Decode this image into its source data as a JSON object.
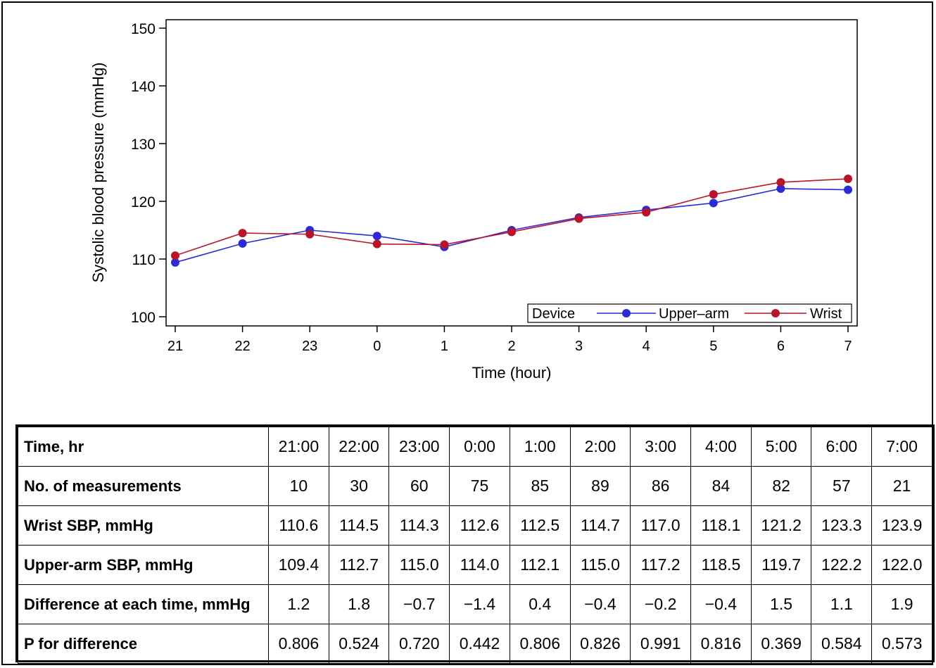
{
  "chart_data": {
    "type": "line",
    "xlabel": "Time (hour)",
    "ylabel": "Systolic blood pressure (mmHg)",
    "categories": [
      "21",
      "22",
      "23",
      "0",
      "1",
      "2",
      "3",
      "4",
      "5",
      "6",
      "7"
    ],
    "ylim": [
      100,
      150
    ],
    "yticks": [
      100,
      110,
      120,
      130,
      140,
      150
    ],
    "grid": false,
    "legend": {
      "title": "Device",
      "position": "bottom-right"
    },
    "series": [
      {
        "name": "Upper–arm",
        "color": "#2b2bd6",
        "values": [
          109.4,
          112.7,
          115.0,
          114.0,
          112.1,
          115.0,
          117.2,
          118.5,
          119.7,
          122.2,
          122.0
        ]
      },
      {
        "name": "Wrist",
        "color": "#b8142a",
        "values": [
          110.6,
          114.5,
          114.3,
          112.6,
          112.5,
          114.7,
          117.0,
          118.1,
          121.2,
          123.3,
          123.9
        ]
      }
    ]
  },
  "table": {
    "rows": [
      {
        "label": "Time, hr",
        "cells": [
          "21:00",
          "22:00",
          "23:00",
          "0:00",
          "1:00",
          "2:00",
          "3:00",
          "4:00",
          "5:00",
          "6:00",
          "7:00"
        ]
      },
      {
        "label": "No. of measurements",
        "cells": [
          "10",
          "30",
          "60",
          "75",
          "85",
          "89",
          "86",
          "84",
          "82",
          "57",
          "21"
        ]
      },
      {
        "label": "Wrist SBP, mmHg",
        "cells": [
          "110.6",
          "114.5",
          "114.3",
          "112.6",
          "112.5",
          "114.7",
          "117.0",
          "118.1",
          "121.2",
          "123.3",
          "123.9"
        ]
      },
      {
        "label": "Upper-arm SBP, mmHg",
        "cells": [
          "109.4",
          "112.7",
          "115.0",
          "114.0",
          "112.1",
          "115.0",
          "117.2",
          "118.5",
          "119.7",
          "122.2",
          "122.0"
        ]
      },
      {
        "label": "Difference at each time, mmHg",
        "cells": [
          "1.2",
          "1.8",
          "−0.7",
          "−1.4",
          "0.4",
          "−0.4",
          "−0.2",
          "−0.4",
          "1.5",
          "1.1",
          "1.9"
        ]
      },
      {
        "label": "P for difference",
        "cells": [
          "0.806",
          "0.524",
          "0.720",
          "0.442",
          "0.806",
          "0.826",
          "0.991",
          "0.816",
          "0.369",
          "0.584",
          "0.573"
        ]
      }
    ]
  }
}
